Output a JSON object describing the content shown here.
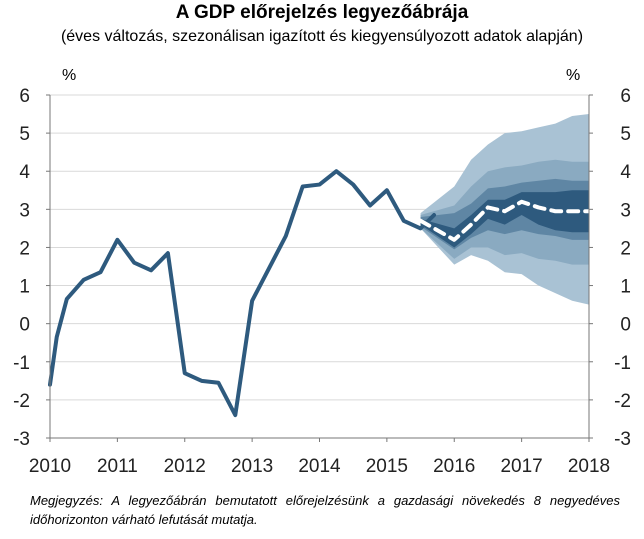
{
  "chart_data": {
    "type": "line",
    "title": "A GDP előrejelzés legyezőábrája",
    "subtitle": "(éves változás, szezonálisan igazított és kiegyensúlyozott adatok alapján)",
    "ylabel_left": "%",
    "ylabel_right": "%",
    "ylim": [
      -3,
      6
    ],
    "yticks": [
      -3,
      -2,
      -1,
      0,
      1,
      2,
      3,
      4,
      5,
      6
    ],
    "xlim": [
      2010,
      2018
    ],
    "xticks": [
      "2010",
      "2011",
      "2012",
      "2013",
      "2014",
      "2015",
      "2016",
      "2017",
      "2018"
    ],
    "grid": true,
    "series": [
      {
        "color": "#2e5a7e",
        "x": [
          2010.0,
          2010.1,
          2010.25,
          2010.5,
          2010.75,
          2011.0,
          2011.25,
          2011.5,
          2011.75,
          2012.0,
          2012.25,
          2012.5,
          2012.75,
          2013.0,
          2013.25,
          2013.5,
          2013.75,
          2014.0,
          2014.25,
          2014.5,
          2014.75,
          2015.0,
          2015.25,
          2015.5,
          2015.7
        ],
        "values": [
          -1.6,
          -0.35,
          0.65,
          1.15,
          1.35,
          2.2,
          1.6,
          1.4,
          1.85,
          -1.3,
          -1.5,
          -1.55,
          -2.4,
          0.6,
          1.45,
          2.3,
          3.6,
          3.65,
          4.0,
          3.65,
          3.1,
          3.5,
          2.7,
          2.5,
          2.85
        ]
      },
      {
        "color": "#ffffff",
        "style": "dashed",
        "x": [
          2015.5,
          2016.0,
          2016.25,
          2016.5,
          2016.75,
          2017.0,
          2017.25,
          2017.5,
          2017.75,
          2018.0
        ],
        "values": [
          2.7,
          2.2,
          2.6,
          3.05,
          2.95,
          3.2,
          3.05,
          2.95,
          2.95,
          2.95
        ]
      }
    ],
    "fan_x": [
      2015.5,
      2016.0,
      2016.25,
      2016.5,
      2016.75,
      2017.0,
      2017.25,
      2017.5,
      2017.75,
      2018.0
    ],
    "fan_bands": [
      {
        "color": "#a9c2d4",
        "upper": [
          2.9,
          3.6,
          4.3,
          4.7,
          5.0,
          5.05,
          5.15,
          5.25,
          5.45,
          5.5
        ],
        "lower": [
          2.5,
          1.55,
          1.8,
          1.65,
          1.35,
          1.3,
          1.0,
          0.8,
          0.6,
          0.5
        ]
      },
      {
        "color": "#8aaac1",
        "upper": [
          2.85,
          3.1,
          3.6,
          4.0,
          4.1,
          4.15,
          4.25,
          4.3,
          4.25,
          4.25
        ],
        "lower": [
          2.5,
          1.7,
          2.0,
          2.0,
          1.8,
          1.85,
          1.7,
          1.65,
          1.55,
          1.55
        ]
      },
      {
        "color": "#5f86a4",
        "upper": [
          2.8,
          2.9,
          3.15,
          3.55,
          3.6,
          3.7,
          3.75,
          3.8,
          3.75,
          3.75
        ],
        "lower": [
          2.55,
          1.95,
          2.25,
          2.45,
          2.35,
          2.45,
          2.35,
          2.3,
          2.2,
          2.2
        ]
      },
      {
        "color": "#2e5a7e",
        "upper": [
          2.75,
          2.5,
          2.85,
          3.25,
          3.25,
          3.45,
          3.45,
          3.45,
          3.5,
          3.5
        ],
        "lower": [
          2.6,
          2.0,
          2.35,
          2.75,
          2.6,
          2.85,
          2.6,
          2.45,
          2.4,
          2.4
        ]
      }
    ]
  },
  "note": "Megjegyzés: A legyezőábrán bemutatott előrejelzésünk a gazdasági növekedés 8 negyedéves időhorizonton várható lefutását mutatja."
}
